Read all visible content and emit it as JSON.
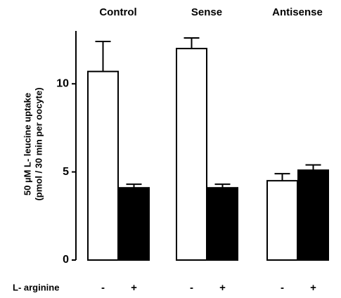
{
  "chart_data": {
    "type": "bar",
    "y_label": [
      "50 µM L- leucine uptake",
      "(pmol / 30 min per oocyte)"
    ],
    "series_label": "L- arginine",
    "categories": [
      "Control",
      "Sense",
      "Antisense"
    ],
    "series": [
      {
        "name": "-",
        "color": "#ffffff",
        "values": [
          10.7,
          12.0,
          4.5
        ],
        "errors": [
          1.7,
          0.6,
          0.4
        ]
      },
      {
        "name": "+",
        "color": "#000000",
        "values": [
          4.1,
          4.1,
          5.1
        ],
        "errors": [
          0.2,
          0.2,
          0.3
        ]
      }
    ],
    "ylim": [
      0,
      13
    ],
    "yticks": [
      0,
      5,
      10
    ],
    "grid": false
  }
}
